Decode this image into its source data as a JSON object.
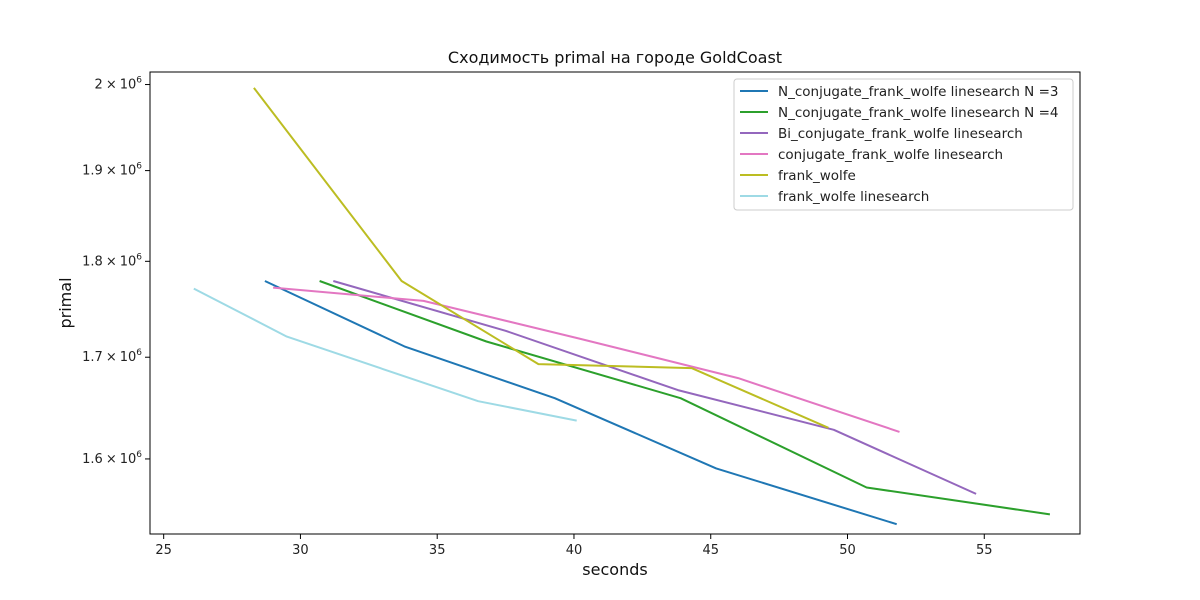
{
  "chart_data": {
    "type": "line",
    "title": "Сходимость primal на городе GoldCoast",
    "xlabel": "seconds",
    "ylabel": "primal",
    "xlim": [
      24.5,
      58.5
    ],
    "ylim": [
      1530000,
      2015000
    ],
    "y_scale": "log",
    "grid": false,
    "legend_position": "top-right",
    "x_ticks": [
      25,
      30,
      35,
      40,
      45,
      50,
      55
    ],
    "x_tick_labels": [
      "25",
      "30",
      "35",
      "40",
      "45",
      "50",
      "55"
    ],
    "y_ticks": [
      1600000,
      1700000,
      1800000,
      1900000,
      2000000
    ],
    "y_tick_mantissas": [
      "1.6",
      "1.7",
      "1.8",
      "1.9",
      "2"
    ],
    "y_tick_times": "×",
    "y_tick_base": "10",
    "y_tick_exponent": "6",
    "series": [
      {
        "name": "N_conjugate_frank_wolfe linesearch N =3",
        "color": "#1f77b4",
        "x": [
          28.7,
          33.8,
          39.3,
          45.2,
          51.8
        ],
        "y": [
          1779000,
          1711000,
          1659000,
          1591000,
          1539000
        ]
      },
      {
        "name": "N_conjugate_frank_wolfe linesearch N =4",
        "color": "#2ca02c",
        "x": [
          30.7,
          36.8,
          43.9,
          50.7,
          57.4
        ],
        "y": [
          1779000,
          1716000,
          1659000,
          1573000,
          1548000
        ]
      },
      {
        "name": "Bi_conjugate_frank_wolfe linesearch",
        "color": "#9467bd",
        "x": [
          31.2,
          37.5,
          43.8,
          49.5,
          54.7
        ],
        "y": [
          1779000,
          1727000,
          1667000,
          1628000,
          1567000
        ]
      },
      {
        "name": "conjugate_frank_wolfe linesearch",
        "color": "#e377c2",
        "x": [
          29.0,
          34.5,
          40.2,
          46.0,
          51.9
        ],
        "y": [
          1772000,
          1758000,
          1719000,
          1679000,
          1626000
        ]
      },
      {
        "name": "frank_wolfe",
        "color": "#bcbd22",
        "x": [
          28.3,
          33.7,
          38.7,
          44.3,
          49.3
        ],
        "y": [
          1996000,
          1779000,
          1693000,
          1689000,
          1630000
        ]
      },
      {
        "name": "frank_wolfe linesearch",
        "color": "#9edae5",
        "x": [
          26.1,
          29.5,
          36.5,
          40.1
        ],
        "y": [
          1771000,
          1721000,
          1656000,
          1637000
        ]
      }
    ]
  }
}
